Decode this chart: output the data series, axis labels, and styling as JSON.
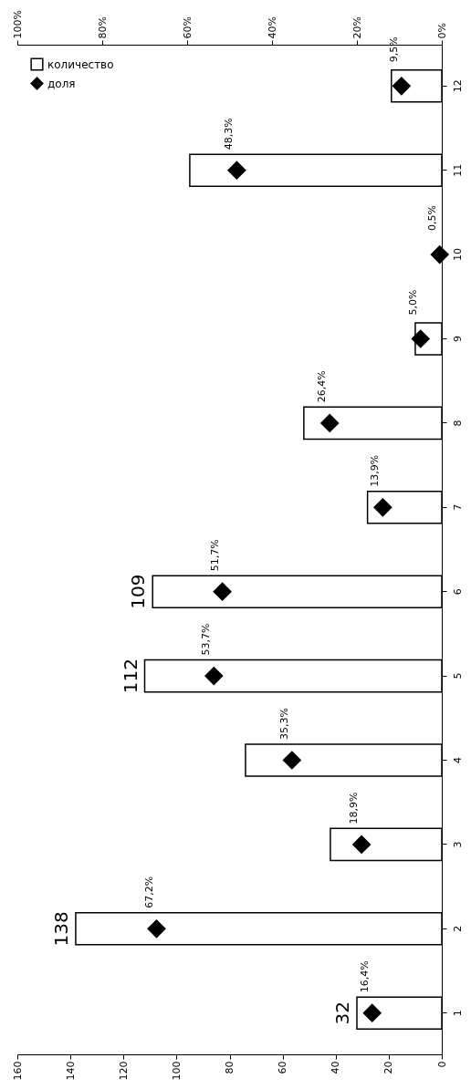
{
  "chart_data": {
    "type": "bar",
    "orientation": "horizontal",
    "categories": [
      "12",
      "11",
      "10",
      "9",
      "8",
      "7",
      "6",
      "5",
      "4",
      "3",
      "2",
      "1"
    ],
    "series": [
      {
        "name": "количество",
        "color": "#ffffff",
        "values": [
          19,
          95,
          0,
          10,
          52,
          28,
          109,
          112,
          74,
          42,
          138,
          32
        ],
        "value_labels": [
          null,
          null,
          null,
          null,
          null,
          null,
          "109",
          "112",
          null,
          null,
          "138",
          "32"
        ]
      },
      {
        "name": "доля",
        "type": "scatter",
        "axis": "x2",
        "color": "#000000",
        "values": [
          9.5,
          48.3,
          0.5,
          5.0,
          26.4,
          13.9,
          51.7,
          53.7,
          35.3,
          18.9,
          67.2,
          16.4
        ],
        "value_labels": [
          "9,5%",
          "48,3%",
          "0,5%",
          "5,0%",
          "26,4%",
          "13,9%",
          "51,7%",
          "53,7%",
          "35,3%",
          "18,9%",
          "67,2%",
          "16,4%"
        ]
      }
    ],
    "xlim": [
      160,
      0
    ],
    "xticks": [
      160,
      140,
      120,
      100,
      80,
      60,
      40,
      20,
      0
    ],
    "x2lim": [
      100,
      0
    ],
    "x2ticks": [
      {
        "value": 100,
        "label": "100%"
      },
      {
        "value": 80,
        "label": "80%"
      },
      {
        "value": 60,
        "label": "60%"
      },
      {
        "value": 40,
        "label": "40%"
      },
      {
        "value": 20,
        "label": "20%"
      },
      {
        "value": 0,
        "label": "0%"
      }
    ],
    "marker": "diamond",
    "legend": "top left",
    "grid": false
  }
}
